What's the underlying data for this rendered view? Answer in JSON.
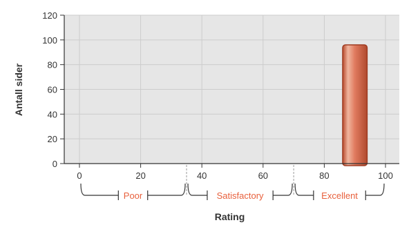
{
  "chart_data": {
    "type": "bar",
    "xlabel": "Rating",
    "ylabel": "Antall sider",
    "xlim": [
      0,
      100
    ],
    "ylim": [
      0,
      120
    ],
    "x_ticks": [
      0,
      20,
      40,
      60,
      80,
      100
    ],
    "y_ticks": [
      0,
      20,
      40,
      60,
      80,
      100,
      120
    ],
    "grid": true,
    "bars": [
      {
        "x_from": 86,
        "x_to": 94,
        "value": 96
      }
    ],
    "bands": [
      {
        "label": "Poor",
        "from": 0,
        "to": 35
      },
      {
        "label": "Satisfactory",
        "from": 35,
        "to": 70
      },
      {
        "label": "Excellent",
        "from": 70,
        "to": 100
      }
    ],
    "colors": {
      "plot_background": "#e6e6e6",
      "grid": "#cccccc",
      "bar_fill": "#e07a5f",
      "bar_stroke": "#9e3b22",
      "band_label": "#e8603c",
      "band_bracket": "#333333",
      "band_divider": "#999999"
    }
  }
}
